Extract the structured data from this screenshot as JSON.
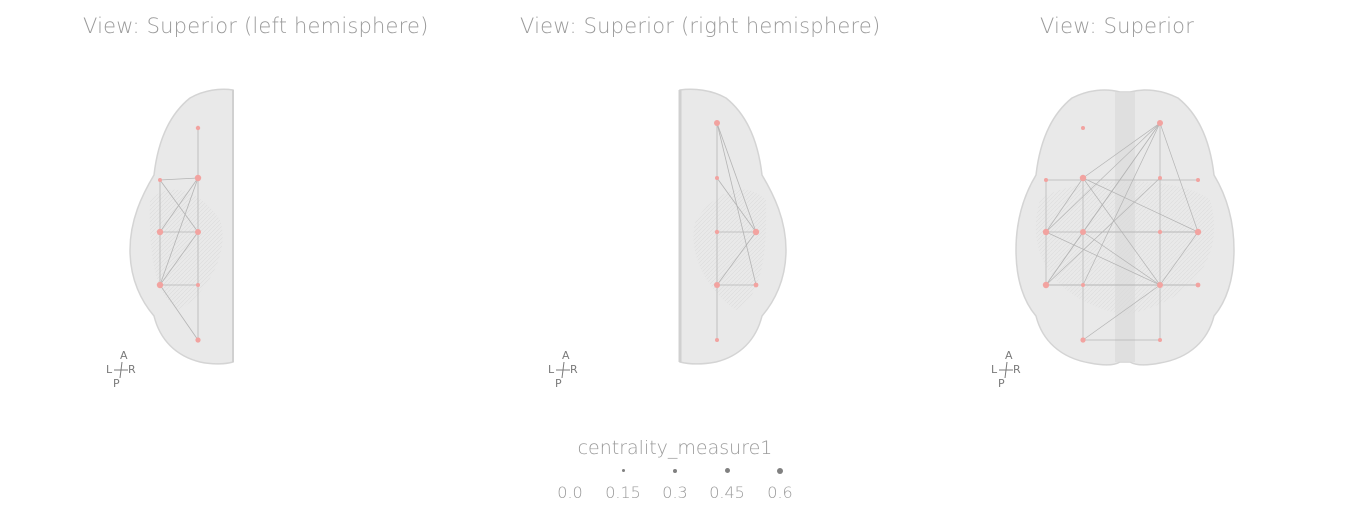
{
  "panels": [
    {
      "title": "View: Superior (left hemisphere)"
    },
    {
      "title": "View: Superior (right hemisphere)"
    },
    {
      "title": "View: Superior"
    }
  ],
  "orientation": {
    "anterior": "A",
    "posterior": "P",
    "left": "L",
    "right": "R"
  },
  "legend": {
    "title": "centrality_measure1",
    "items": [
      "0.0",
      "0.15",
      "0.3",
      "0.45",
      "0.6"
    ]
  },
  "colors": {
    "brain": "#e4e4e4",
    "brain_edge": "#d6d6d6",
    "node": "#f2a3a0",
    "edge": "#b4b4b4",
    "title": "#9a9a9a",
    "legend_dot": "#808080"
  }
}
